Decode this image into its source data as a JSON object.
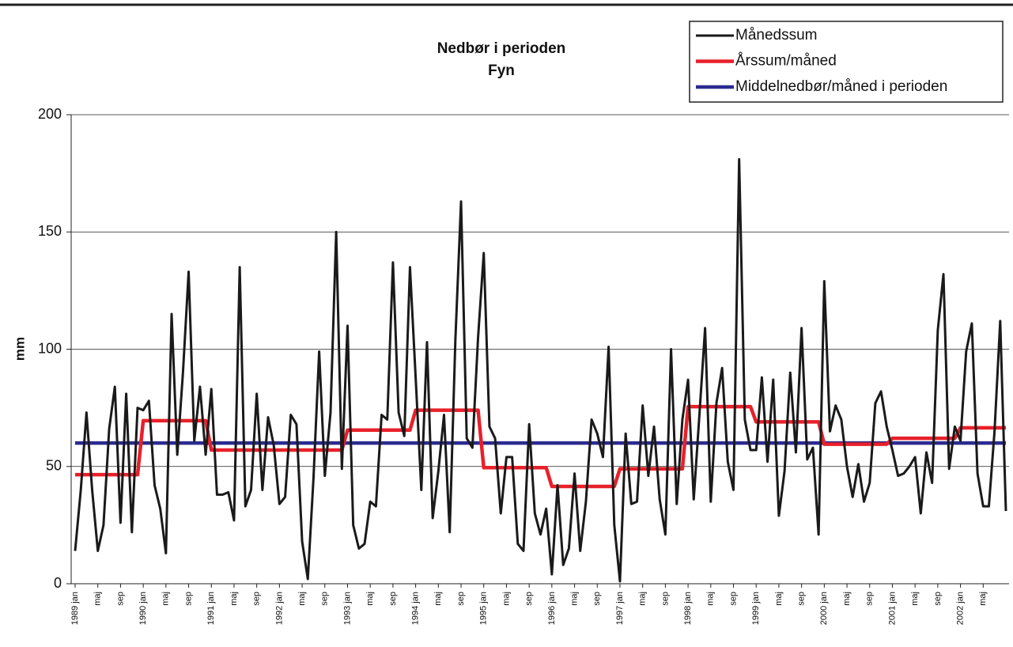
{
  "chart_data": {
    "type": "line",
    "title": "Nedbør i perioden",
    "subtitle": "Fyn",
    "y_label": "mm",
    "categories": [
      "1989 jan",
      null,
      null,
      null,
      "maj",
      null,
      null,
      null,
      "sep",
      null,
      null,
      null,
      "1990 jan",
      null,
      null,
      null,
      "maj",
      null,
      null,
      null,
      "sep",
      null,
      null,
      null,
      "1991 jan",
      null,
      null,
      null,
      "maj",
      null,
      null,
      null,
      "sep",
      null,
      null,
      null,
      "1992 jan",
      null,
      null,
      null,
      "maj",
      null,
      null,
      null,
      "sep",
      null,
      null,
      null,
      "1993 jan",
      null,
      null,
      null,
      "maj",
      null,
      null,
      null,
      "sep",
      null,
      null,
      null,
      "1994 jan",
      null,
      null,
      null,
      "maj",
      null,
      null,
      null,
      "sep",
      null,
      null,
      null,
      "1995 jan",
      null,
      null,
      null,
      "maj",
      null,
      null,
      null,
      "sep",
      null,
      null,
      null,
      "1996 jan",
      null,
      null,
      null,
      "maj",
      null,
      null,
      null,
      "sep",
      null,
      null,
      null,
      "1997 jan",
      null,
      null,
      null,
      "maj",
      null,
      null,
      null,
      "sep",
      null,
      null,
      null,
      "1998 jan",
      null,
      null,
      null,
      "maj",
      null,
      null,
      null,
      "sep",
      null,
      null,
      null,
      "1999 jan",
      null,
      null,
      null,
      "maj",
      null,
      null,
      null,
      "sep",
      null,
      null,
      null,
      "2000 jan",
      null,
      null,
      null,
      "maj",
      null,
      null,
      null,
      "sep",
      null,
      null,
      null,
      "2001 jan",
      null,
      null,
      null,
      "maj",
      null,
      null,
      null,
      "sep",
      null,
      null,
      null,
      "2002 jan",
      null,
      null,
      null,
      "maj",
      null,
      null,
      null,
      null
    ],
    "series": [
      {
        "name": "Månedssum",
        "color": "#1a1a1a",
        "values": [
          14,
          40,
          73,
          40,
          14,
          25,
          66,
          84,
          26,
          81,
          22,
          75,
          74,
          78,
          42,
          32,
          13,
          115,
          55,
          90,
          133,
          61,
          84,
          55,
          83,
          38,
          38,
          39,
          27,
          135,
          33,
          40,
          81,
          40,
          71,
          59,
          34,
          37,
          72,
          68,
          18,
          2,
          45,
          99,
          46,
          73,
          150,
          49,
          110,
          25,
          15,
          17,
          35,
          33,
          72,
          70,
          137,
          73,
          63,
          135,
          88,
          40,
          103,
          28,
          48,
          72,
          22,
          104,
          163,
          62,
          58,
          105,
          141,
          67,
          62,
          30,
          54,
          54,
          17,
          14,
          68,
          30,
          21,
          32,
          4,
          42,
          8,
          15,
          47,
          14,
          35,
          70,
          64,
          54,
          101,
          25,
          1,
          64,
          34,
          35,
          76,
          46,
          67,
          36,
          21,
          100,
          34,
          70,
          87,
          36,
          72,
          109,
          35,
          77,
          92,
          52,
          40,
          181,
          70,
          57,
          57,
          88,
          52,
          87,
          29,
          48,
          90,
          56,
          109,
          53,
          58,
          21,
          129,
          65,
          76,
          70,
          50,
          37,
          51,
          35,
          43,
          77,
          82,
          67,
          57,
          46,
          47,
          50,
          54,
          30,
          56,
          43,
          108,
          132,
          49,
          67,
          61,
          99,
          111,
          47,
          33,
          33,
          65,
          112,
          31
        ]
      },
      {
        "name": "Årssum/måned",
        "color": "#e8202a",
        "values": [
          46.5,
          46.5,
          46.5,
          46.5,
          46.5,
          46.5,
          46.5,
          46.5,
          46.5,
          46.5,
          46.5,
          46.5,
          69.5,
          69.5,
          69.5,
          69.5,
          69.5,
          69.5,
          69.5,
          69.5,
          69.5,
          69.5,
          69.5,
          69.5,
          57,
          57,
          57,
          57,
          57,
          57,
          57,
          57,
          57,
          57,
          57,
          57,
          57,
          57,
          57,
          57,
          57,
          57,
          57,
          57,
          57,
          57,
          57,
          57,
          65.5,
          65.5,
          65.5,
          65.5,
          65.5,
          65.5,
          65.5,
          65.5,
          65.5,
          65.5,
          65.5,
          65.5,
          74,
          74,
          74,
          74,
          74,
          74,
          74,
          74,
          74,
          74,
          74,
          74,
          49.5,
          49.5,
          49.5,
          49.5,
          49.5,
          49.5,
          49.5,
          49.5,
          49.5,
          49.5,
          49.5,
          49.5,
          41.5,
          41.5,
          41.5,
          41.5,
          41.5,
          41.5,
          41.5,
          41.5,
          41.5,
          41.5,
          41.5,
          41.5,
          49,
          49,
          49,
          49,
          49,
          49,
          49,
          49,
          49,
          49,
          49,
          49,
          75.5,
          75.5,
          75.5,
          75.5,
          75.5,
          75.5,
          75.5,
          75.5,
          75.5,
          75.5,
          75.5,
          75.5,
          69,
          69,
          69,
          69,
          69,
          69,
          69,
          69,
          69,
          69,
          69,
          69,
          59.5,
          59.5,
          59.5,
          59.5,
          59.5,
          59.5,
          59.5,
          59.5,
          59.5,
          59.5,
          59.5,
          59.5,
          62,
          62,
          62,
          62,
          62,
          62,
          62,
          62,
          62,
          62,
          62,
          62,
          66.5,
          66.5,
          66.5,
          66.5,
          66.5,
          66.5,
          66.5,
          66.5,
          66.5
        ]
      },
      {
        "name": "Middelnedbør/måned i perioden",
        "color": "#2b2b8f",
        "values": [
          60,
          60,
          60,
          60,
          60,
          60,
          60,
          60,
          60,
          60,
          60,
          60,
          60,
          60,
          60,
          60,
          60,
          60,
          60,
          60,
          60,
          60,
          60,
          60,
          60,
          60,
          60,
          60,
          60,
          60,
          60,
          60,
          60,
          60,
          60,
          60,
          60,
          60,
          60,
          60,
          60,
          60,
          60,
          60,
          60,
          60,
          60,
          60,
          60,
          60,
          60,
          60,
          60,
          60,
          60,
          60,
          60,
          60,
          60,
          60,
          60,
          60,
          60,
          60,
          60,
          60,
          60,
          60,
          60,
          60,
          60,
          60,
          60,
          60,
          60,
          60,
          60,
          60,
          60,
          60,
          60,
          60,
          60,
          60,
          60,
          60,
          60,
          60,
          60,
          60,
          60,
          60,
          60,
          60,
          60,
          60,
          60,
          60,
          60,
          60,
          60,
          60,
          60,
          60,
          60,
          60,
          60,
          60,
          60,
          60,
          60,
          60,
          60,
          60,
          60,
          60,
          60,
          60,
          60,
          60,
          60,
          60,
          60,
          60,
          60,
          60,
          60,
          60,
          60,
          60,
          60,
          60,
          60,
          60,
          60,
          60,
          60,
          60,
          60,
          60,
          60,
          60,
          60,
          60,
          60,
          60,
          60,
          60,
          60,
          60,
          60,
          60,
          60,
          60,
          60,
          60,
          60,
          60,
          60,
          60,
          60,
          60,
          60,
          60,
          60
        ]
      }
    ],
    "ylim": [
      0,
      200
    ],
    "yticks": [
      0,
      50,
      100,
      150,
      200
    ],
    "grid": true,
    "legend": "top-right"
  }
}
